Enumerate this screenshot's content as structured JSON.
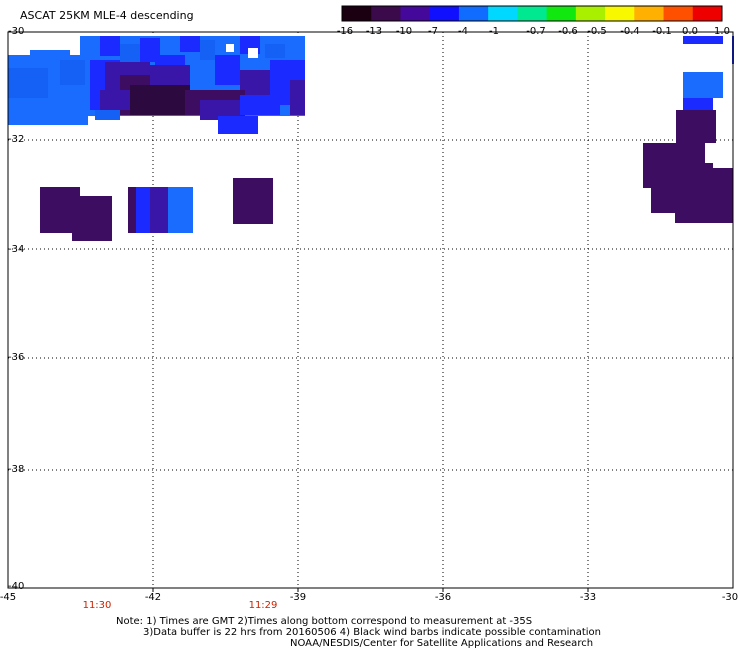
{
  "title": "ASCAT 25KM MLE-4 descending",
  "colorbar": {
    "labels": [
      "-16",
      "-13",
      "-10",
      "-7",
      "-4",
      "-1",
      "-0.7",
      "-0.6",
      "-0.5",
      "-0.4",
      "-0.1",
      "0.0",
      "1.0"
    ],
    "colors": [
      "#1a0010",
      "#3a0a4a",
      "#44089a",
      "#1010ff",
      "#0f6cff",
      "#00d8ff",
      "#00e890",
      "#10e810",
      "#a8f000",
      "#f8f800",
      "#ffb000",
      "#ff5000",
      "#ee0000"
    ]
  },
  "axes": {
    "lat_labels": [
      "-30",
      "-32",
      "-34",
      "-36",
      "-38",
      "-40"
    ],
    "lon_labels": [
      "-45",
      "-42",
      "-39",
      "-36",
      "-33",
      "-30"
    ]
  },
  "times": [
    "11:30",
    "11:29"
  ],
  "notes": [
    "Note: 1) Times are GMT 2)Times along bottom correspond to measurement at -35S",
    "3)Data buffer is 22 hrs from 20160506 4) Black wind barbs indicate possible contamination",
    "NOAA/NESDIS/Center for Satellite Applications and Research"
  ],
  "legend_colors": {
    "deep_purple": "#3c0b54",
    "dark_purple": "#2e0a3e",
    "indigo": "#4a1aa0",
    "blue": "#1b1bff",
    "medium_blue": "#1862f0",
    "light_blue": "#1a78ff"
  }
}
